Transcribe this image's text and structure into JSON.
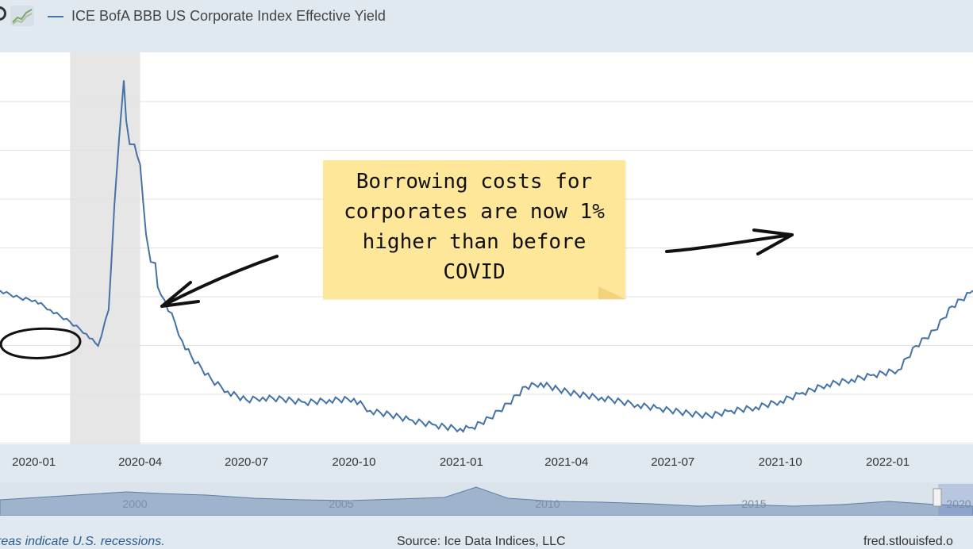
{
  "header": {
    "legend_label": "ICE BofA BBB US Corporate Index Effective Yield",
    "series_color": "#4572a7"
  },
  "annotation": {
    "note_text": "Borrowing costs for\ncorporates are now 1%\nhigher than before\nCOVID",
    "note_color": "#fee799"
  },
  "footer": {
    "left": "reas indicate U.S. recessions.",
    "source": "Source: Ice Data Indices, LLC",
    "right": "fred.stlouisfed.o"
  },
  "navigator": {
    "labels": [
      "2000",
      "2005",
      "2010",
      "2015",
      "2020"
    ]
  },
  "chart_data": {
    "type": "line",
    "title": "",
    "xlabel": "",
    "ylabel": "",
    "x_ticks": [
      "2020-01",
      "2020-04",
      "2020-07",
      "2020-10",
      "2021-01",
      "2021-04",
      "2021-07",
      "2021-10",
      "2022-01"
    ],
    "x_range": [
      "2019-12-03",
      "2022-03-15"
    ],
    "y_range_note": "y-axis tick labels not visible; values expressed as relative yield level (%) estimated",
    "ylim": [
      2.0,
      5.2
    ],
    "recession_shading": [
      "2020-02",
      "2020-04"
    ],
    "grid": "horizontal",
    "series": [
      {
        "name": "ICE BofA BBB US Corporate Index Effective Yield",
        "x": [
          "2019-12-03",
          "2019-12-20",
          "2020-01-02",
          "2020-01-15",
          "2020-02-01",
          "2020-02-15",
          "2020-02-25",
          "2020-03-05",
          "2020-03-10",
          "2020-03-14",
          "2020-03-18",
          "2020-03-20",
          "2020-03-23",
          "2020-03-27",
          "2020-04-01",
          "2020-04-06",
          "2020-04-10",
          "2020-04-14",
          "2020-04-16",
          "2020-04-22",
          "2020-05-01",
          "2020-05-07",
          "2020-05-15",
          "2020-06-01",
          "2020-06-15",
          "2020-07-01",
          "2020-07-15",
          "2020-08-01",
          "2020-08-20",
          "2020-09-10",
          "2020-10-01",
          "2020-10-15",
          "2020-11-01",
          "2020-11-20",
          "2020-12-10",
          "2020-12-31",
          "2021-01-10",
          "2021-01-25",
          "2021-02-10",
          "2021-02-25",
          "2021-03-10",
          "2021-03-25",
          "2021-04-10",
          "2021-05-01",
          "2021-06-01",
          "2021-06-20",
          "2021-07-15",
          "2021-08-01",
          "2021-08-20",
          "2021-09-10",
          "2021-10-01",
          "2021-10-20",
          "2021-11-10",
          "2021-12-01",
          "2021-12-20",
          "2022-01-10",
          "2022-01-25",
          "2022-02-10",
          "2022-02-25",
          "2022-03-15"
        ],
        "y": [
          3.28,
          3.22,
          3.2,
          3.12,
          3.02,
          2.92,
          2.82,
          3.12,
          4.0,
          4.55,
          5.03,
          4.7,
          4.5,
          4.5,
          4.33,
          3.75,
          3.52,
          3.51,
          3.31,
          3.2,
          3.01,
          2.86,
          2.73,
          2.54,
          2.44,
          2.37,
          2.39,
          2.38,
          2.35,
          2.37,
          2.38,
          2.28,
          2.25,
          2.2,
          2.16,
          2.13,
          2.14,
          2.22,
          2.34,
          2.48,
          2.51,
          2.46,
          2.42,
          2.39,
          2.33,
          2.3,
          2.26,
          2.24,
          2.28,
          2.31,
          2.36,
          2.43,
          2.5,
          2.54,
          2.58,
          2.62,
          2.82,
          2.95,
          3.15,
          3.28
        ]
      }
    ]
  }
}
